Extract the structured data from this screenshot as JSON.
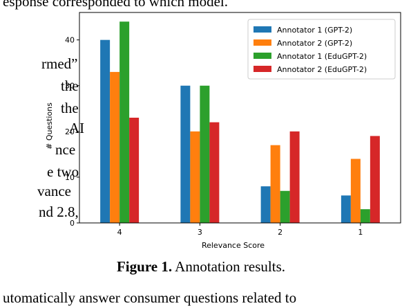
{
  "text": {
    "top_line": "esponse corresponded to which model.",
    "left_fragments": [
      "rmed”",
      "the",
      "the",
      "AI",
      "nce",
      "e  two",
      "vance",
      "nd  2.8,"
    ],
    "caption_label": "Figure 1.",
    "caption_text": " Annotation results.",
    "bottom_line": "utomatically answer consumer questions related to"
  },
  "chart_data": {
    "type": "bar",
    "categories": [
      "4",
      "3",
      "2",
      "1"
    ],
    "xlabel": "Relevance Score",
    "ylabel": "# Questions",
    "ylim": [
      0,
      46
    ],
    "yticks": [
      0,
      10,
      20,
      30,
      40
    ],
    "grid": false,
    "legend_position": "top-right",
    "series": [
      {
        "name": "Annotator 1 (GPT-2)",
        "color": "#1f77b4",
        "values": [
          40,
          30,
          8,
          6
        ]
      },
      {
        "name": "Annotator 2 (GPT-2)",
        "color": "#ff7f0e",
        "values": [
          33,
          20,
          17,
          14
        ]
      },
      {
        "name": "Annotator 1 (EduGPT-2)",
        "color": "#2ca02c",
        "values": [
          44,
          30,
          7,
          3
        ]
      },
      {
        "name": "Annotator 2 (EduGPT-2)",
        "color": "#d62728",
        "values": [
          23,
          22,
          20,
          19
        ]
      }
    ]
  }
}
